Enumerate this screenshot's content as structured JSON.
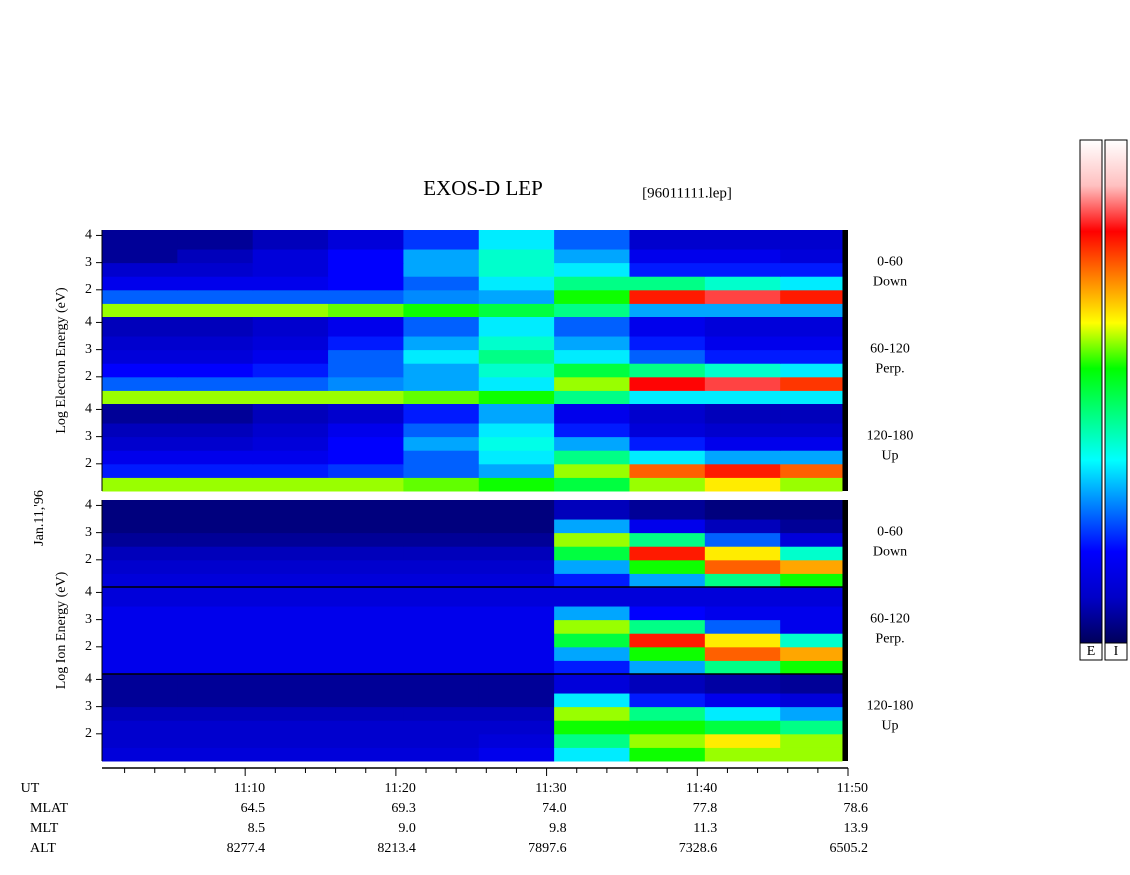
{
  "chart_data": {
    "type": "heatmap",
    "title": "EXOS-D LEP",
    "subtitle": "[96011111.lep]",
    "date_label": "Jan.11,'96",
    "xlim": [
      0.5,
      50
    ],
    "xticks": [
      {
        "value": 10,
        "label": "11:10"
      },
      {
        "value": 20,
        "label": "11:20"
      },
      {
        "value": 30,
        "label": "11:30"
      },
      {
        "value": 40,
        "label": "11:40"
      },
      {
        "value": 50,
        "label": "11:50"
      }
    ],
    "minor_xticks": [
      2,
      4,
      6,
      8,
      12,
      14,
      16,
      18,
      22,
      24,
      26,
      28,
      32,
      34,
      36,
      38,
      42,
      44,
      46,
      48
    ],
    "time_edges": [
      0.5,
      5.5,
      10.5,
      15.5,
      20.5,
      25.5,
      30.5,
      35.5,
      40.5,
      45.5,
      49.6
    ],
    "energy_edges": [
      1,
      1.5,
      2,
      2.5,
      3,
      3.5,
      4.2
    ],
    "ylim": [
      1,
      4.2
    ],
    "yticks": [
      2,
      3,
      4
    ],
    "zlim": [
      0,
      1
    ],
    "colormap": [
      "#00005a",
      "#0000c8",
      "#0000ff",
      "#0080ff",
      "#00ffff",
      "#00ff80",
      "#00ff00",
      "#ffff00",
      "#ff8000",
      "#ff0000",
      "#ffc0c0",
      "#ffffff"
    ],
    "colorbar_labels": [
      "E",
      "I"
    ],
    "groups": [
      {
        "label": "Log Electron Energy (eV)",
        "panels": [
          {
            "pitch": "0-60",
            "direction": "Down",
            "values": [
              [
                0.6,
                0.6,
                0.6,
                0.58,
                0.55,
                0.5,
                0.45,
                0.3,
                0.3,
                0.3
              ],
              [
                0.25,
                0.25,
                0.25,
                0.25,
                0.28,
                0.3,
                0.55,
                0.8,
                0.85,
                0.8
              ],
              [
                0.15,
                0.15,
                0.15,
                0.18,
                0.25,
                0.35,
                0.45,
                0.45,
                0.4,
                0.35
              ],
              [
                0.1,
                0.1,
                0.12,
                0.18,
                0.3,
                0.4,
                0.35,
                0.2,
                0.2,
                0.2
              ],
              [
                0.05,
                0.08,
                0.12,
                0.18,
                0.3,
                0.4,
                0.3,
                0.15,
                0.15,
                0.12
              ],
              [
                0.05,
                0.05,
                0.08,
                0.12,
                0.22,
                0.35,
                0.25,
                0.1,
                0.1,
                0.1
              ]
            ]
          },
          {
            "pitch": "60-120",
            "direction": "Perp.",
            "values": [
              [
                0.6,
                0.6,
                0.6,
                0.6,
                0.58,
                0.55,
                0.45,
                0.35,
                0.35,
                0.35
              ],
              [
                0.25,
                0.25,
                0.25,
                0.28,
                0.3,
                0.35,
                0.6,
                0.82,
                0.85,
                0.78
              ],
              [
                0.18,
                0.18,
                0.2,
                0.25,
                0.3,
                0.4,
                0.5,
                0.45,
                0.4,
                0.35
              ],
              [
                0.12,
                0.12,
                0.15,
                0.25,
                0.35,
                0.45,
                0.35,
                0.25,
                0.2,
                0.2
              ],
              [
                0.1,
                0.1,
                0.12,
                0.2,
                0.3,
                0.4,
                0.3,
                0.2,
                0.15,
                0.15
              ],
              [
                0.08,
                0.08,
                0.1,
                0.15,
                0.25,
                0.35,
                0.25,
                0.15,
                0.12,
                0.12
              ]
            ]
          },
          {
            "pitch": "120-180",
            "direction": "Up",
            "values": [
              [
                0.6,
                0.6,
                0.6,
                0.6,
                0.58,
                0.55,
                0.5,
                0.6,
                0.65,
                0.6
              ],
              [
                0.2,
                0.2,
                0.2,
                0.22,
                0.25,
                0.3,
                0.6,
                0.75,
                0.8,
                0.75
              ],
              [
                0.15,
                0.15,
                0.15,
                0.18,
                0.25,
                0.35,
                0.45,
                0.35,
                0.3,
                0.3
              ],
              [
                0.1,
                0.1,
                0.12,
                0.18,
                0.3,
                0.38,
                0.3,
                0.2,
                0.15,
                0.15
              ],
              [
                0.08,
                0.08,
                0.1,
                0.15,
                0.25,
                0.35,
                0.2,
                0.12,
                0.1,
                0.1
              ],
              [
                0.05,
                0.05,
                0.08,
                0.1,
                0.2,
                0.3,
                0.15,
                0.1,
                0.08,
                0.08
              ]
            ]
          }
        ]
      },
      {
        "label": "Log Ion Energy (eV)",
        "panels": [
          {
            "pitch": "0-60",
            "direction": "Down",
            "values": [
              [
                0.12,
                0.12,
                0.12,
                0.12,
                0.12,
                0.12,
                0.2,
                0.3,
                0.45,
                0.55
              ],
              [
                0.1,
                0.1,
                0.1,
                0.1,
                0.1,
                0.1,
                0.3,
                0.55,
                0.75,
                0.7
              ],
              [
                0.08,
                0.08,
                0.08,
                0.08,
                0.08,
                0.08,
                0.5,
                0.8,
                0.65,
                0.4
              ],
              [
                0.05,
                0.05,
                0.05,
                0.05,
                0.05,
                0.05,
                0.6,
                0.45,
                0.25,
                0.12
              ],
              [
                0.03,
                0.03,
                0.03,
                0.03,
                0.03,
                0.03,
                0.3,
                0.15,
                0.08,
                0.05
              ],
              [
                0.03,
                0.03,
                0.03,
                0.03,
                0.03,
                0.03,
                0.08,
                0.05,
                0.03,
                0.03
              ]
            ]
          },
          {
            "pitch": "60-120",
            "direction": "Perp.",
            "values": [
              [
                0.15,
                0.15,
                0.15,
                0.15,
                0.15,
                0.15,
                0.2,
                0.3,
                0.45,
                0.55
              ],
              [
                0.15,
                0.15,
                0.15,
                0.15,
                0.15,
                0.15,
                0.3,
                0.55,
                0.75,
                0.7
              ],
              [
                0.15,
                0.15,
                0.15,
                0.15,
                0.15,
                0.15,
                0.5,
                0.8,
                0.65,
                0.4
              ],
              [
                0.15,
                0.15,
                0.15,
                0.15,
                0.15,
                0.15,
                0.6,
                0.45,
                0.25,
                0.15
              ],
              [
                0.15,
                0.15,
                0.15,
                0.15,
                0.15,
                0.15,
                0.3,
                0.18,
                0.15,
                0.15
              ],
              [
                0.12,
                0.12,
                0.12,
                0.12,
                0.12,
                0.12,
                0.12,
                0.12,
                0.12,
                0.12
              ]
            ]
          },
          {
            "pitch": "120-180",
            "direction": "Up",
            "values": [
              [
                0.12,
                0.12,
                0.12,
                0.12,
                0.12,
                0.15,
                0.35,
                0.55,
                0.6,
                0.6
              ],
              [
                0.1,
                0.1,
                0.1,
                0.1,
                0.1,
                0.12,
                0.45,
                0.6,
                0.65,
                0.6
              ],
              [
                0.1,
                0.1,
                0.1,
                0.1,
                0.1,
                0.1,
                0.55,
                0.55,
                0.5,
                0.45
              ],
              [
                0.08,
                0.08,
                0.08,
                0.08,
                0.08,
                0.08,
                0.6,
                0.45,
                0.35,
                0.3
              ],
              [
                0.05,
                0.05,
                0.05,
                0.05,
                0.05,
                0.05,
                0.35,
                0.2,
                0.15,
                0.12
              ],
              [
                0.05,
                0.05,
                0.05,
                0.05,
                0.05,
                0.05,
                0.12,
                0.08,
                0.06,
                0.05
              ]
            ]
          }
        ]
      }
    ],
    "time_row_label": "UT",
    "orbit_rows": [
      {
        "name": "MLAT",
        "values": [
          "64.5",
          "69.3",
          "74.0",
          "77.8",
          "78.6"
        ]
      },
      {
        "name": "MLT",
        "values": [
          "8.5",
          "9.0",
          "9.8",
          "11.3",
          "13.9"
        ]
      },
      {
        "name": "ALT",
        "values": [
          "8277.4",
          "8213.4",
          "7897.6",
          "7328.6",
          "6505.2"
        ]
      }
    ]
  }
}
